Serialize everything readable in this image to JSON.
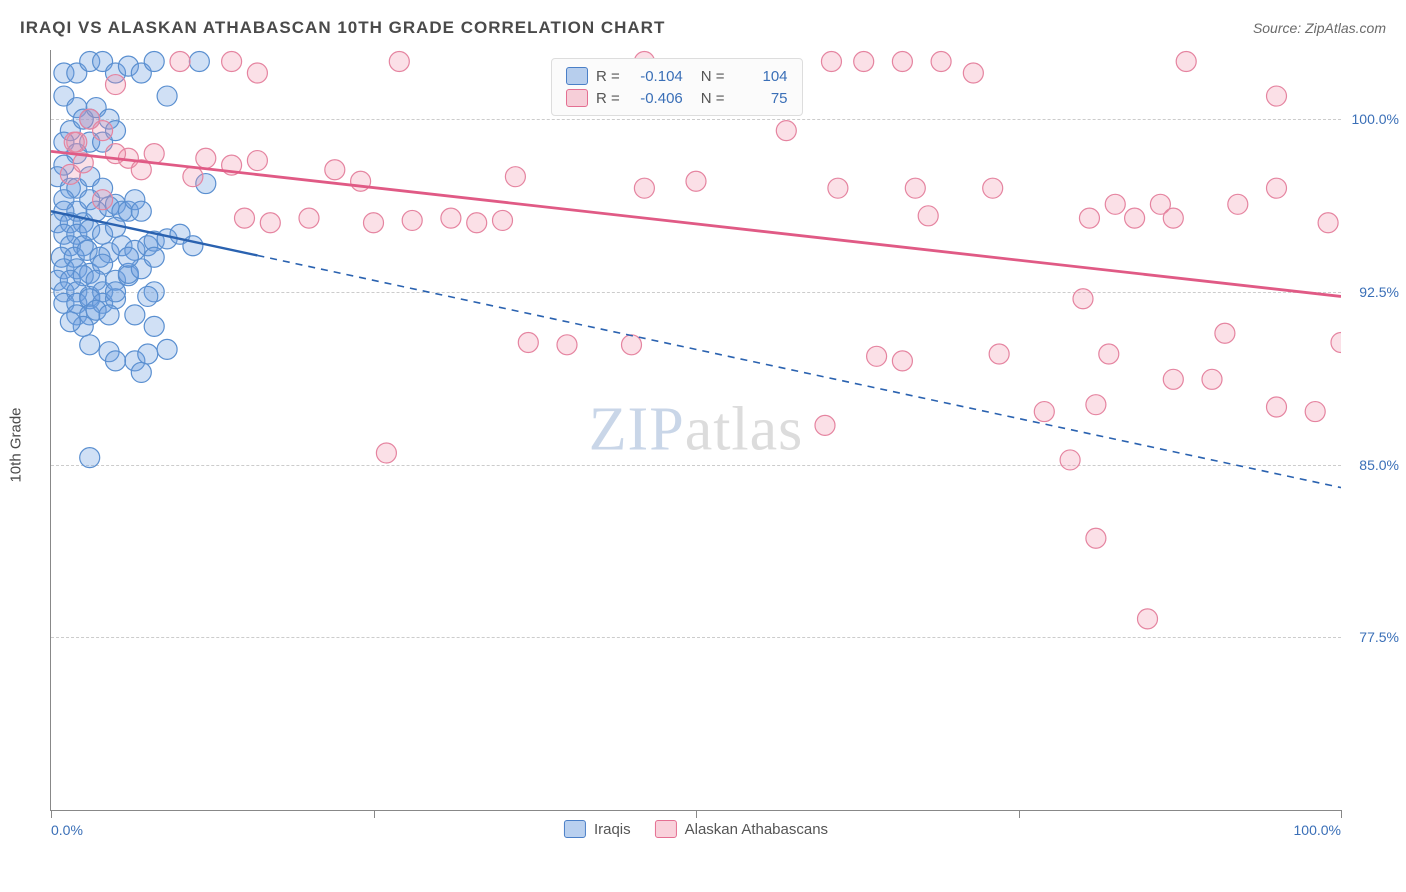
{
  "title": "IRAQI VS ALASKAN ATHABASCAN 10TH GRADE CORRELATION CHART",
  "source": "Source: ZipAtlas.com",
  "ylabel": "10th Grade",
  "watermark_a": "ZIP",
  "watermark_b": "atlas",
  "chart": {
    "type": "scatter",
    "xlim": [
      0,
      100
    ],
    "ylim": [
      70,
      103
    ],
    "x_ticks": [
      0,
      25,
      50,
      75,
      100
    ],
    "x_tick_labels": [
      "0.0%",
      "",
      "",
      "",
      "100.0%"
    ],
    "y_ticks": [
      77.5,
      85.0,
      92.5,
      100.0
    ],
    "y_tick_labels": [
      "77.5%",
      "85.0%",
      "92.5%",
      "100.0%"
    ],
    "grid_color": "#cccccc",
    "axis_color": "#888888",
    "background_color": "#ffffff",
    "marker_radius": 10,
    "marker_stroke_width": 1.2,
    "series": [
      {
        "name": "Iraqis",
        "color_fill": "rgba(110,160,225,0.32)",
        "color_stroke": "#5a8fd0",
        "r_value": "-0.104",
        "n_value": "104",
        "trend": {
          "x0": 0,
          "y0": 96.0,
          "x1": 100,
          "y1": 84.0,
          "solid_until_x": 16,
          "color": "#2a62b0",
          "width": 2.4
        },
        "points": [
          [
            1,
            102
          ],
          [
            2,
            102
          ],
          [
            3,
            102.5
          ],
          [
            4,
            102.5
          ],
          [
            5,
            102
          ],
          [
            6,
            102.3
          ],
          [
            7,
            102
          ],
          [
            8,
            102.5
          ],
          [
            9,
            101
          ],
          [
            11.5,
            102.5
          ],
          [
            1,
            101
          ],
          [
            2,
            100.5
          ],
          [
            3,
            100
          ],
          [
            1.5,
            99.5
          ],
          [
            2.5,
            100
          ],
          [
            3.5,
            100.5
          ],
          [
            4.5,
            100
          ],
          [
            1,
            99
          ],
          [
            2,
            98.5
          ],
          [
            3,
            99
          ],
          [
            4,
            99
          ],
          [
            5,
            99.5
          ],
          [
            1,
            98
          ],
          [
            0.5,
            97.5
          ],
          [
            1.5,
            97
          ],
          [
            2,
            97
          ],
          [
            3,
            97.5
          ],
          [
            4,
            97
          ],
          [
            1,
            96.5
          ],
          [
            2,
            96
          ],
          [
            3,
            96.5
          ],
          [
            1,
            96
          ],
          [
            0.5,
            95.5
          ],
          [
            1.5,
            95.5
          ],
          [
            2.5,
            95.5
          ],
          [
            3.5,
            96
          ],
          [
            4.5,
            96.2
          ],
          [
            5,
            96.3
          ],
          [
            5.5,
            96
          ],
          [
            6,
            96
          ],
          [
            6.5,
            96.5
          ],
          [
            7,
            96
          ],
          [
            1,
            95
          ],
          [
            2,
            95
          ],
          [
            3,
            95.2
          ],
          [
            4,
            95
          ],
          [
            5,
            95.3
          ],
          [
            1.5,
            94.5
          ],
          [
            2.5,
            94.5
          ],
          [
            0.8,
            94
          ],
          [
            1.8,
            94
          ],
          [
            2.8,
            94.3
          ],
          [
            3.8,
            94
          ],
          [
            4.5,
            94.2
          ],
          [
            5.5,
            94.5
          ],
          [
            6.5,
            94.3
          ],
          [
            7.5,
            94.5
          ],
          [
            8,
            94.7
          ],
          [
            9,
            94.8
          ],
          [
            10,
            95
          ],
          [
            11,
            94.5
          ],
          [
            12,
            97.2
          ],
          [
            1,
            93.5
          ],
          [
            2,
            93.5
          ],
          [
            3,
            93.3
          ],
          [
            4,
            93.7
          ],
          [
            0.5,
            93
          ],
          [
            1.5,
            93
          ],
          [
            2.5,
            93.2
          ],
          [
            3.5,
            93
          ],
          [
            1,
            92.5
          ],
          [
            2,
            92.5
          ],
          [
            3,
            92.3
          ],
          [
            4,
            92.5
          ],
          [
            5,
            93
          ],
          [
            6,
            93.2
          ],
          [
            1,
            92
          ],
          [
            2,
            92
          ],
          [
            3,
            92.2
          ],
          [
            2,
            91.5
          ],
          [
            3,
            91.5
          ],
          [
            4,
            92
          ],
          [
            5,
            92.2
          ],
          [
            6,
            93.3
          ],
          [
            7,
            93.5
          ],
          [
            8,
            94
          ],
          [
            2.5,
            91
          ],
          [
            1.5,
            91.2
          ],
          [
            3.5,
            91.7
          ],
          [
            4.5,
            91.5
          ],
          [
            5,
            92.5
          ],
          [
            6,
            94
          ],
          [
            8,
            92.5
          ],
          [
            6.5,
            91.5
          ],
          [
            7.5,
            92.3
          ],
          [
            8,
            91
          ],
          [
            9,
            90
          ],
          [
            3,
            90.2
          ],
          [
            3,
            85.3
          ],
          [
            6.5,
            89.5
          ],
          [
            7,
            89
          ],
          [
            7.5,
            89.8
          ],
          [
            4.5,
            89.9
          ],
          [
            5,
            89.5
          ]
        ]
      },
      {
        "name": "Alaskan Athabascans",
        "color_fill": "rgba(240,145,170,0.28)",
        "color_stroke": "#e584a0",
        "r_value": "-0.406",
        "n_value": "75",
        "trend": {
          "x0": 0,
          "y0": 98.6,
          "x1": 100,
          "y1": 92.3,
          "solid_until_x": 100,
          "color": "#e05a85",
          "width": 2.8
        },
        "points": [
          [
            2,
            99
          ],
          [
            3,
            100
          ],
          [
            4,
            99.5
          ],
          [
            5,
            101.5
          ],
          [
            10,
            102.5
          ],
          [
            14,
            102.5
          ],
          [
            16,
            102
          ],
          [
            27,
            102.5
          ],
          [
            46,
            102.5
          ],
          [
            60.5,
            102.5
          ],
          [
            63,
            102.5
          ],
          [
            66,
            102.5
          ],
          [
            69,
            102.5
          ],
          [
            71.5,
            102
          ],
          [
            88,
            102.5
          ],
          [
            95,
            101
          ],
          [
            6,
            98.3
          ],
          [
            7,
            97.8
          ],
          [
            8,
            98.5
          ],
          [
            5,
            98.5
          ],
          [
            11,
            97.5
          ],
          [
            12,
            98.3
          ],
          [
            14,
            98
          ],
          [
            16,
            98.2
          ],
          [
            22,
            97.8
          ],
          [
            24,
            97.3
          ],
          [
            36,
            97.5
          ],
          [
            46,
            97
          ],
          [
            50,
            97.3
          ],
          [
            57,
            99.5
          ],
          [
            61,
            97
          ],
          [
            67,
            97
          ],
          [
            73,
            97
          ],
          [
            82.5,
            96.3
          ],
          [
            86,
            96.3
          ],
          [
            92,
            96.3
          ],
          [
            95,
            97
          ],
          [
            68,
            95.8
          ],
          [
            80.5,
            95.7
          ],
          [
            84,
            95.7
          ],
          [
            87,
            95.7
          ],
          [
            15,
            95.7
          ],
          [
            17,
            95.5
          ],
          [
            20,
            95.7
          ],
          [
            25,
            95.5
          ],
          [
            26,
            85.5
          ],
          [
            28,
            95.6
          ],
          [
            31,
            95.7
          ],
          [
            33,
            95.5
          ],
          [
            35,
            95.6
          ],
          [
            99,
            95.5
          ],
          [
            37,
            90.3
          ],
          [
            40,
            90.2
          ],
          [
            45,
            90.2
          ],
          [
            60,
            86.7
          ],
          [
            64,
            89.7
          ],
          [
            66,
            89.5
          ],
          [
            73.5,
            89.8
          ],
          [
            80,
            92.2
          ],
          [
            77,
            87.3
          ],
          [
            79,
            85.2
          ],
          [
            82,
            89.8
          ],
          [
            87,
            88.7
          ],
          [
            90,
            88.7
          ],
          [
            91,
            90.7
          ],
          [
            81,
            81.8
          ],
          [
            95,
            87.5
          ],
          [
            98,
            87.3
          ],
          [
            100,
            90.3
          ],
          [
            85,
            78.3
          ],
          [
            81,
            87.6
          ],
          [
            1.5,
            97.6
          ],
          [
            1.8,
            99.0
          ],
          [
            4.0,
            96.5
          ],
          [
            2.5,
            98.1
          ]
        ]
      }
    ]
  },
  "bottom_legend": {
    "item1": "Iraqis",
    "item2": "Alaskan Athabascans"
  },
  "legendbox": {
    "r_label": "R =",
    "n_label": "N ="
  }
}
